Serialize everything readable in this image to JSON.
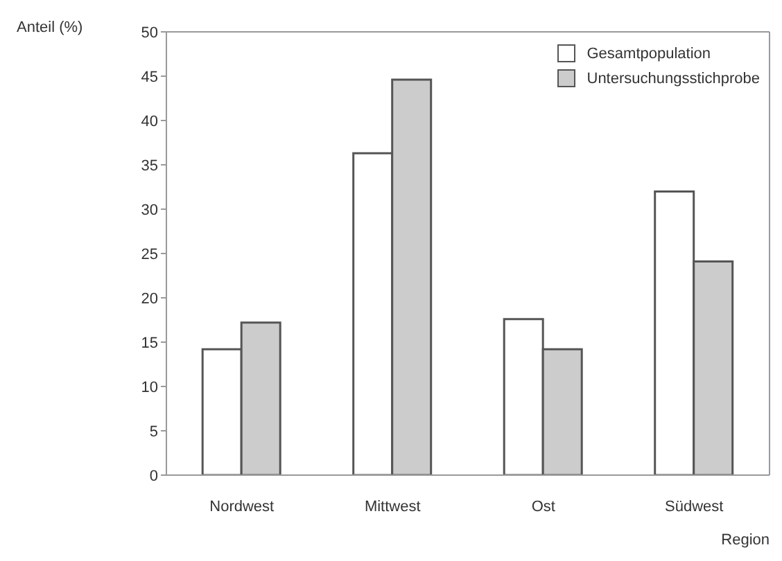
{
  "chart_data": {
    "type": "bar",
    "ylabel": "Anteil (%)",
    "xlabel": "Region",
    "categories": [
      "Nordwest",
      "Mittwest",
      "Ost",
      "Südwest"
    ],
    "series": [
      {
        "name": "Gesamtpopulation",
        "color": "#ffffff",
        "values": [
          14.2,
          36.3,
          17.6,
          32.0
        ]
      },
      {
        "name": "Untersuchungsstichprobe",
        "color": "#cccccc",
        "values": [
          17.2,
          44.6,
          14.2,
          24.1
        ]
      }
    ],
    "ylim": [
      0,
      50
    ],
    "yticks": [
      0,
      5,
      10,
      15,
      20,
      25,
      30,
      35,
      40,
      45,
      50
    ],
    "grid": false,
    "legend": "top right"
  }
}
